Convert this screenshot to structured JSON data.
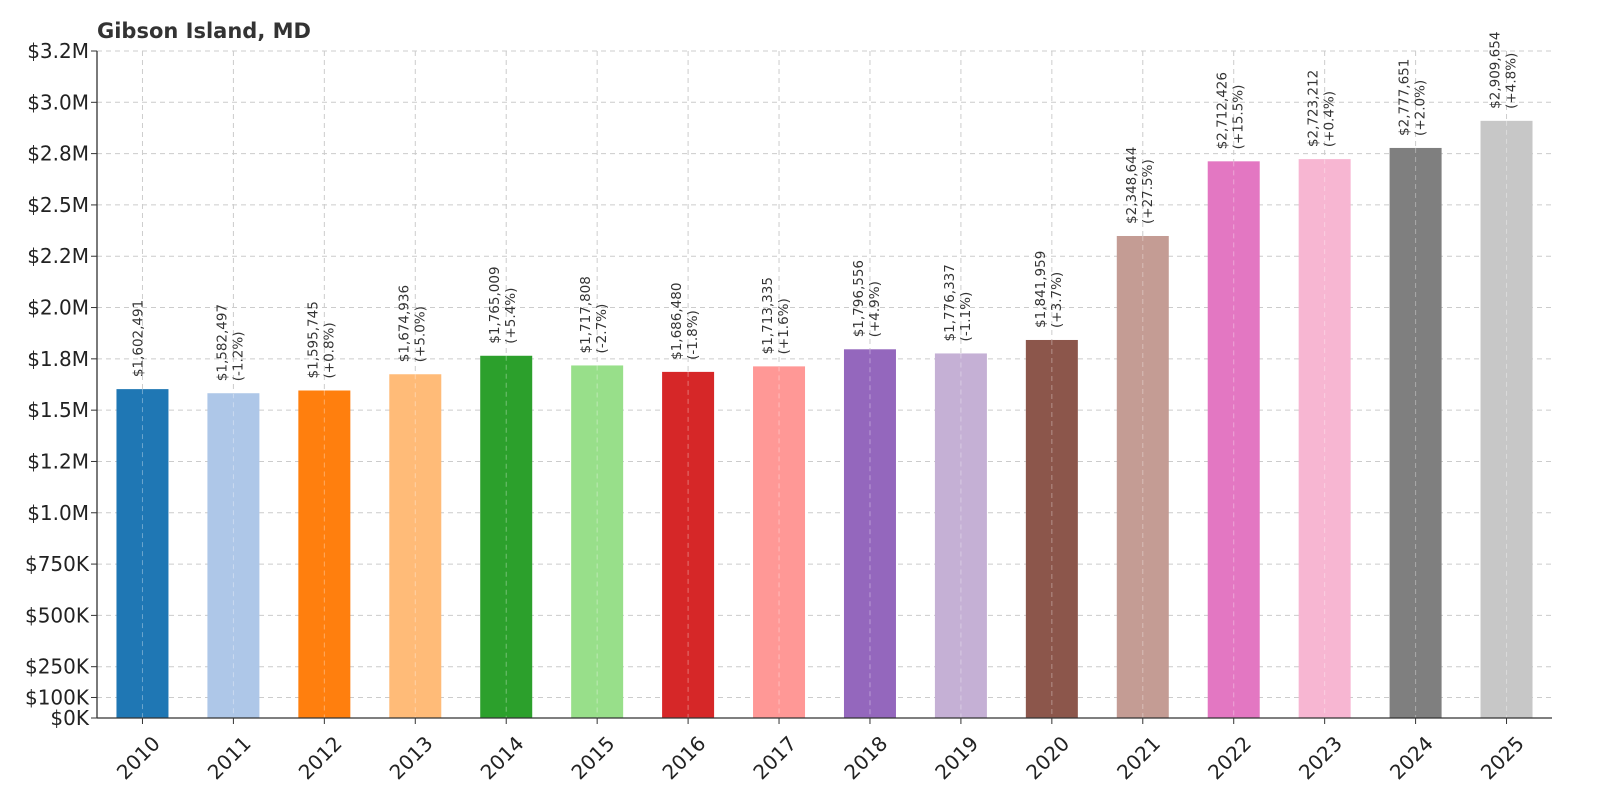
{
  "chart_data": {
    "type": "bar",
    "title": "Gibson Island, MD",
    "xlabel": "",
    "ylabel": "",
    "grid": true,
    "ylim": [
      0,
      3250000
    ],
    "categories": [
      "2010",
      "2011",
      "2012",
      "2013",
      "2014",
      "2015",
      "2016",
      "2017",
      "2018",
      "2019",
      "2020",
      "2021",
      "2022",
      "2023",
      "2024",
      "2025"
    ],
    "values": [
      1602491,
      1582497,
      1595745,
      1674936,
      1765009,
      1717808,
      1686480,
      1713335,
      1796556,
      1776337,
      1841959,
      2348644,
      2712426,
      2723212,
      2777651,
      2909654
    ],
    "value_labels": [
      "$1,602,491",
      "$1,582,497",
      "$1,595,745",
      "$1,674,936",
      "$1,765,009",
      "$1,717,808",
      "$1,686,480",
      "$1,713,335",
      "$1,796,556",
      "$1,776,337",
      "$1,841,959",
      "$2,348,644",
      "$2,712,426",
      "$2,723,212",
      "$2,777,651",
      "$2,909,654"
    ],
    "change_labels": [
      "",
      "(-1.2%)",
      "(+0.8%)",
      "(+5.0%)",
      "(+5.4%)",
      "(-2.7%)",
      "(-1.8%)",
      "(+1.6%)",
      "(+4.9%)",
      "(-1.1%)",
      "(+3.7%)",
      "(+27.5%)",
      "(+15.5%)",
      "(+0.4%)",
      "(+2.0%)",
      "(+4.8%)"
    ],
    "colors": [
      "#1f77b4",
      "#aec7e8",
      "#ff7f0e",
      "#ffbb78",
      "#2ca02c",
      "#98df8a",
      "#d62728",
      "#ff9896",
      "#9467bd",
      "#c5b0d5",
      "#8c564b",
      "#c49c94",
      "#e377c2",
      "#f7b6d2",
      "#7f7f7f",
      "#c7c7c7"
    ],
    "yticks": [
      0,
      100000,
      250000,
      500000,
      750000,
      1000000,
      1250000,
      1500000,
      1750000,
      2000000,
      2250000,
      2500000,
      2750000,
      3000000,
      3250000
    ],
    "ytick_labels": [
      "$0K",
      "$100K",
      "$250K",
      "$500K",
      "$750K",
      "$1.0M",
      "$1.2M",
      "$1.5M",
      "$1.8M",
      "$2.0M",
      "$2.2M",
      "$2.5M",
      "$2.8M",
      "$3.0M",
      "$3.2M"
    ]
  }
}
